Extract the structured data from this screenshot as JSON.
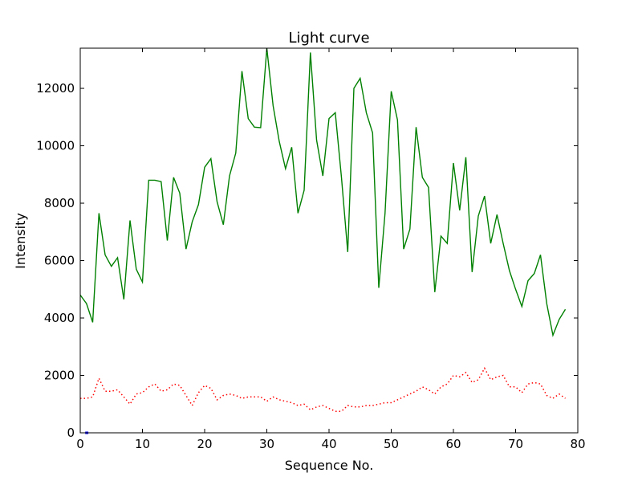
{
  "chart_data": {
    "type": "line",
    "title": "Light curve",
    "xlabel": "Sequence No.",
    "ylabel": "Intensity",
    "xlim": [
      0,
      80
    ],
    "ylim": [
      0,
      13400
    ],
    "xticks": [
      0,
      10,
      20,
      30,
      40,
      50,
      60,
      70,
      80
    ],
    "yticks": [
      0,
      2000,
      4000,
      6000,
      8000,
      10000,
      12000
    ],
    "grid": false,
    "series": [
      {
        "name": "green",
        "color": "#008000",
        "style": "solid",
        "values": [
          4800,
          4500,
          3850,
          7650,
          6200,
          5800,
          6100,
          4650,
          7400,
          5700,
          5250,
          8800,
          8800,
          8750,
          6700,
          8900,
          8350,
          6400,
          7350,
          7950,
          9250,
          9550,
          8050,
          7250,
          8950,
          9750,
          12600,
          10950,
          10650,
          10630,
          13400,
          11400,
          10150,
          9200,
          9950,
          7650,
          8450,
          13250,
          10200,
          8950,
          10950,
          11150,
          8900,
          6300,
          12000,
          12350,
          11150,
          10450,
          5050,
          7650,
          11900,
          10900,
          6400,
          7100,
          10650,
          8900,
          8550,
          4900,
          6850,
          6600,
          9400,
          7750,
          9600,
          5600,
          7550,
          8250,
          6600,
          7600,
          6600,
          5650,
          5000,
          4400,
          5300,
          5550,
          6200,
          4500,
          3400,
          3950,
          4300
        ]
      },
      {
        "name": "red",
        "color": "#ff0000",
        "style": "dotted",
        "values": [
          1200,
          1200,
          1250,
          1900,
          1450,
          1450,
          1500,
          1250,
          1000,
          1350,
          1400,
          1600,
          1700,
          1450,
          1500,
          1700,
          1650,
          1300,
          950,
          1400,
          1650,
          1550,
          1150,
          1300,
          1350,
          1300,
          1200,
          1250,
          1250,
          1250,
          1100,
          1250,
          1150,
          1100,
          1050,
          950,
          1000,
          800,
          900,
          950,
          850,
          750,
          750,
          950,
          900,
          900,
          950,
          950,
          1000,
          1050,
          1050,
          1150,
          1250,
          1350,
          1450,
          1600,
          1500,
          1350,
          1600,
          1700,
          2000,
          1950,
          2100,
          1750,
          1850,
          2250,
          1850,
          1950,
          2000,
          1600,
          1600,
          1400,
          1700,
          1750,
          1700,
          1300,
          1200,
          1350,
          1200
        ]
      },
      {
        "name": "blue",
        "color": "#0000ff",
        "style": "solid",
        "x": [
          0.8,
          1.3
        ],
        "values": [
          0,
          0
        ]
      }
    ]
  }
}
